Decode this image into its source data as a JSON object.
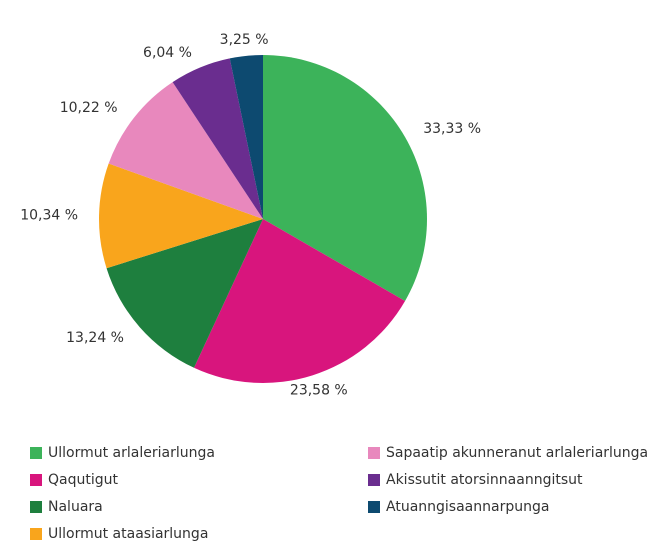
{
  "chart_data": {
    "type": "pie",
    "categories": [
      "Ullormut arlaleriarlunga",
      "Qaqutigut",
      "Naluara",
      "Ullormut ataasiarlunga",
      "Sapaatip akunneranut arlaleriarlunga",
      "Akissutit atorsinnaanngitsut",
      "Atuanngisaannarpunga"
    ],
    "values": [
      33.33,
      23.58,
      13.24,
      10.34,
      10.22,
      6.04,
      3.25
    ],
    "value_labels": [
      "33,33 %",
      "23,58 %",
      "13,24 %",
      "10,34 %",
      "10,22 %",
      "6,04 %",
      "3,25 %"
    ],
    "colors": [
      "#3cb35a",
      "#d8157d",
      "#1e7f3e",
      "#f9a51c",
      "#e888bd",
      "#6a2d8f",
      "#0d4a70"
    ]
  }
}
